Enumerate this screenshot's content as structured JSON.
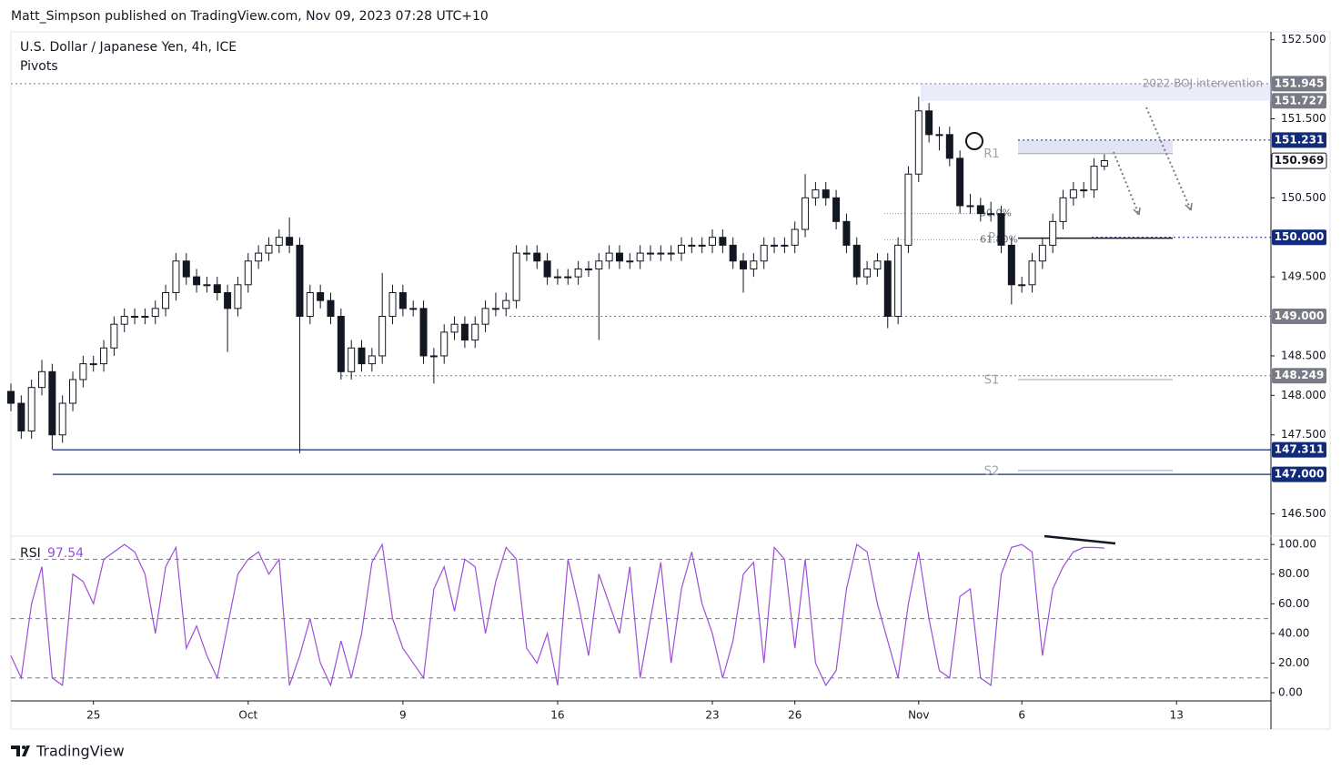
{
  "header": {
    "publisher": "Matt_Simpson published on TradingView.com, Nov 09, 2023 07:28 UTC+10",
    "brand": "TradingView"
  },
  "chart_data": [
    {
      "type": "candlestick",
      "title": "U.S. Dollar / Japanese Yen, 4h, ICE",
      "subtitle": "Pivots",
      "up_color": "#ffffff",
      "down_color": "#131722",
      "xlim": [
        0,
        122.15
      ],
      "xticks": [
        {
          "value": 8,
          "label": "25"
        },
        {
          "value": 23,
          "label": "Oct"
        },
        {
          "value": 38,
          "label": "9"
        },
        {
          "value": 53,
          "label": "16"
        },
        {
          "value": 68,
          "label": "23"
        },
        {
          "value": 76,
          "label": "26"
        },
        {
          "value": 88,
          "label": "Nov"
        },
        {
          "value": 98,
          "label": "6"
        },
        {
          "value": 113,
          "label": "13"
        }
      ],
      "ylim": [
        146.23,
        152.6
      ],
      "yticks": [
        {
          "value": 152.5,
          "label": "152.500"
        },
        {
          "value": 151.5,
          "label": "151.500"
        },
        {
          "value": 150.5,
          "label": "150.500"
        },
        {
          "value": 149.5,
          "label": "149.500"
        },
        {
          "value": 148.5,
          "label": "148.500"
        },
        {
          "value": 148,
          "label": "148.000"
        },
        {
          "value": 147.5,
          "label": "147.500"
        },
        {
          "value": 146.5,
          "label": "146.500"
        }
      ],
      "open": [
        148.05,
        147.9,
        147.55,
        148.1,
        148.3,
        147.5,
        147.9,
        148.2,
        148.4,
        148.4,
        148.6,
        148.9,
        149.0,
        149.0,
        149.0,
        149.1,
        149.3,
        149.7,
        149.5,
        149.4,
        149.4,
        149.3,
        149.1,
        149.4,
        149.7,
        149.8,
        149.9,
        150.0,
        149.9,
        149.0,
        149.3,
        149.2,
        149.0,
        148.3,
        148.6,
        148.4,
        148.5,
        149.0,
        149.3,
        149.1,
        149.1,
        148.5,
        148.5,
        148.8,
        148.9,
        148.7,
        148.9,
        149.1,
        149.1,
        149.2,
        149.8,
        149.8,
        149.7,
        149.5,
        149.5,
        149.5,
        149.6,
        149.6,
        149.7,
        149.8,
        149.7,
        149.7,
        149.8,
        149.8,
        149.8,
        149.8,
        149.9,
        149.9,
        149.9,
        150.0,
        149.9,
        149.7,
        149.6,
        149.7,
        149.9,
        149.9,
        149.9,
        150.1,
        150.5,
        150.6,
        150.5,
        150.2,
        149.9,
        149.5,
        149.6,
        149.7,
        149.0,
        149.9,
        150.8,
        151.6,
        151.3,
        151.3,
        151.0,
        150.4,
        150.4,
        150.3,
        150.3,
        149.9,
        149.4,
        149.4,
        149.7,
        149.9,
        150.2,
        150.5,
        150.6,
        150.6,
        150.9
      ],
      "high": [
        148.15,
        148.0,
        148.2,
        148.45,
        148.4,
        148.0,
        148.3,
        148.5,
        148.5,
        148.7,
        149.0,
        149.1,
        149.1,
        149.1,
        149.2,
        149.4,
        149.8,
        149.8,
        149.6,
        149.5,
        149.5,
        149.4,
        149.5,
        149.8,
        149.9,
        150.0,
        150.1,
        150.25,
        150.0,
        149.4,
        149.4,
        149.3,
        149.1,
        148.7,
        148.7,
        148.6,
        149.55,
        149.4,
        149.4,
        149.2,
        149.2,
        148.6,
        148.9,
        149.0,
        149.0,
        149.0,
        149.2,
        149.3,
        149.3,
        149.9,
        149.9,
        149.9,
        149.8,
        149.6,
        149.6,
        149.7,
        149.7,
        149.8,
        149.9,
        149.9,
        149.8,
        149.9,
        149.9,
        149.9,
        149.9,
        150.0,
        150.0,
        150.0,
        150.1,
        150.1,
        150.0,
        149.8,
        149.8,
        150.0,
        150.0,
        150.0,
        150.2,
        150.8,
        150.7,
        150.7,
        150.6,
        150.3,
        150.0,
        149.7,
        149.8,
        149.8,
        150.0,
        150.9,
        151.78,
        151.7,
        151.4,
        151.4,
        151.1,
        150.55,
        150.5,
        150.45,
        150.4,
        150.0,
        149.5,
        149.8,
        150.0,
        150.3,
        150.6,
        150.7,
        150.7,
        151.0,
        151.05
      ],
      "low": [
        147.8,
        147.45,
        147.45,
        148.0,
        147.31,
        147.4,
        147.8,
        148.1,
        148.3,
        148.3,
        148.5,
        148.8,
        148.9,
        148.9,
        148.9,
        149.0,
        149.2,
        149.4,
        149.3,
        149.3,
        149.2,
        148.55,
        149.0,
        149.3,
        149.6,
        149.7,
        149.8,
        149.8,
        147.27,
        148.9,
        149.1,
        148.9,
        148.2,
        148.2,
        148.3,
        148.3,
        148.4,
        148.9,
        149.0,
        149.0,
        148.4,
        148.15,
        148.4,
        148.7,
        148.6,
        148.6,
        148.8,
        149.0,
        149.0,
        149.1,
        149.7,
        149.6,
        149.4,
        149.4,
        149.4,
        149.4,
        149.5,
        148.7,
        149.6,
        149.6,
        149.6,
        149.6,
        149.7,
        149.7,
        149.7,
        149.7,
        149.8,
        149.8,
        149.8,
        149.8,
        149.6,
        149.3,
        149.5,
        149.6,
        149.8,
        149.8,
        149.8,
        150.0,
        150.4,
        150.4,
        150.1,
        149.8,
        149.4,
        149.4,
        149.5,
        148.85,
        148.9,
        149.8,
        150.7,
        151.2,
        151.1,
        150.9,
        150.3,
        150.3,
        150.2,
        150.2,
        149.8,
        149.15,
        149.3,
        149.3,
        149.6,
        149.8,
        150.1,
        150.4,
        150.5,
        150.5,
        150.85
      ],
      "close": [
        147.9,
        147.55,
        148.1,
        148.3,
        147.5,
        147.9,
        148.2,
        148.4,
        148.4,
        148.6,
        148.9,
        149.0,
        149.0,
        149.0,
        149.1,
        149.3,
        149.7,
        149.5,
        149.4,
        149.4,
        149.3,
        149.1,
        149.4,
        149.7,
        149.8,
        149.9,
        150.0,
        149.9,
        149.0,
        149.3,
        149.2,
        149.0,
        148.3,
        148.6,
        148.4,
        148.5,
        149.0,
        149.3,
        149.1,
        149.1,
        148.5,
        148.5,
        148.8,
        148.9,
        148.7,
        148.9,
        149.1,
        149.1,
        149.2,
        149.8,
        149.8,
        149.7,
        149.5,
        149.5,
        149.5,
        149.6,
        149.6,
        149.7,
        149.8,
        149.7,
        149.7,
        149.8,
        149.8,
        149.8,
        149.8,
        149.9,
        149.9,
        149.9,
        150.0,
        149.9,
        149.7,
        149.6,
        149.7,
        149.9,
        149.9,
        149.9,
        150.1,
        150.5,
        150.6,
        150.5,
        150.2,
        149.9,
        149.5,
        149.6,
        149.7,
        149.0,
        149.9,
        150.8,
        151.6,
        151.3,
        151.3,
        151.0,
        150.4,
        150.4,
        150.3,
        150.3,
        149.9,
        149.4,
        149.4,
        149.7,
        149.9,
        150.2,
        150.5,
        150.6,
        150.6,
        150.9,
        150.97
      ],
      "levels": [
        {
          "value": 151.945,
          "label": "151.945",
          "color": "#787b86",
          "note": "2022 BOJ intervention"
        },
        {
          "value": 151.727,
          "label": "151.727",
          "color": "#787b86"
        },
        {
          "value": 151.231,
          "label": "151.231",
          "color": "#112b7a"
        },
        {
          "value": 150.969,
          "label": "150.969",
          "color": "#ffffff"
        },
        {
          "value": 150,
          "label": "150.000",
          "color": "#112b7a"
        },
        {
          "value": 149,
          "label": "149.000",
          "color": "#787b86"
        },
        {
          "value": 148.249,
          "label": "148.249",
          "color": "#787b86"
        },
        {
          "value": 147.311,
          "label": "147.311",
          "color": "#112b7a"
        },
        {
          "value": 147,
          "label": "147.000",
          "color": "#112b7a"
        }
      ],
      "pivots": [
        {
          "name": "R1",
          "value": 151.06
        },
        {
          "name": "P",
          "value": 149.99
        },
        {
          "name": "S1",
          "value": 148.2
        },
        {
          "name": "S2",
          "value": 147.05
        }
      ],
      "fib_labels": [
        {
          "label": "50.0%",
          "value": 150.3
        },
        {
          "label": "61.80%",
          "value": 149.97
        }
      ]
    },
    {
      "type": "line",
      "title": "RSI",
      "color": "#9c4fd6",
      "ylim": [
        -5.5,
        105
      ],
      "yticks": [
        {
          "value": 100,
          "label": "100.00"
        },
        {
          "value": 80,
          "label": "80.00"
        },
        {
          "value": 60,
          "label": "60.00"
        },
        {
          "value": 40,
          "label": "40.00"
        },
        {
          "value": 20,
          "label": "20.00"
        },
        {
          "value": 0,
          "label": "0.00"
        }
      ],
      "bands": [
        90,
        50,
        10
      ],
      "values": [
        25,
        10,
        60,
        85,
        10,
        5,
        80,
        75,
        60,
        90,
        95,
        100,
        95,
        80,
        40,
        85,
        98,
        30,
        45,
        25,
        10,
        45,
        80,
        90,
        95,
        80,
        90,
        5,
        25,
        50,
        20,
        5,
        35,
        10,
        40,
        88,
        100,
        50,
        30,
        20,
        10,
        70,
        85,
        55,
        90,
        85,
        40,
        75,
        98,
        90,
        30,
        20,
        40,
        5,
        90,
        60,
        25,
        80,
        60,
        40,
        85,
        10,
        50,
        88,
        20,
        70,
        95,
        60,
        40,
        10,
        35,
        80,
        88,
        20,
        98,
        90,
        30,
        90,
        20,
        5,
        15,
        70,
        100,
        95,
        60,
        35,
        10,
        60,
        95,
        50,
        15,
        10,
        65,
        70,
        10,
        5,
        80,
        98,
        100,
        95,
        25,
        70,
        85,
        95,
        98,
        98,
        97.54
      ]
    }
  ]
}
